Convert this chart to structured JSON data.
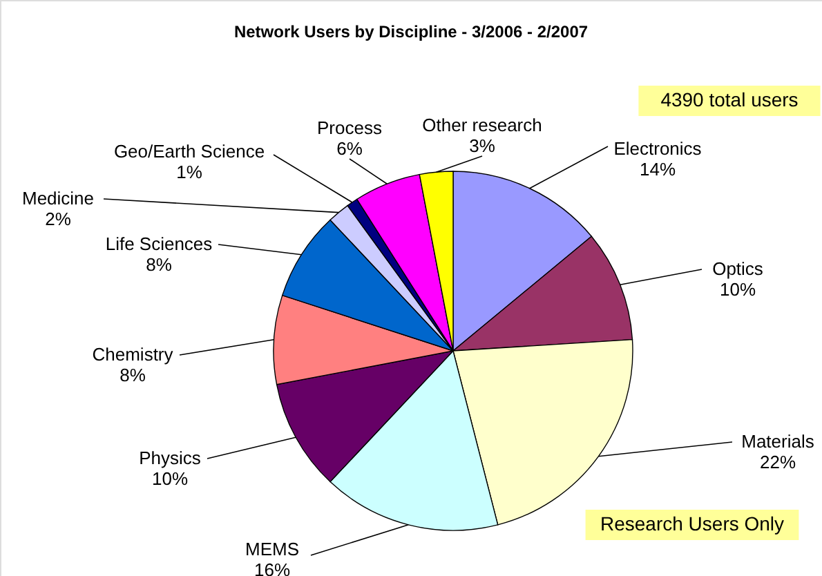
{
  "chart_data": {
    "type": "pie",
    "title": "Network Users by Discipline  - 3/2006 - 2/2007",
    "categories": [
      "Electronics",
      "Optics",
      "Materials",
      "MEMS",
      "Physics",
      "Chemistry",
      "Life Sciences",
      "Medicine",
      "Geo/Earth Science",
      "Process",
      "Other research"
    ],
    "values": [
      14,
      10,
      22,
      16,
      10,
      8,
      8,
      2,
      1,
      6,
      3
    ],
    "value_labels": [
      "14%",
      "10%",
      "22%",
      "16%",
      "10%",
      "8%",
      "8%",
      "2%",
      "1%",
      "6%",
      "3%"
    ],
    "colors": [
      "#9999ff",
      "#993366",
      "#ffffcc",
      "#ccffff",
      "#660066",
      "#ff8080",
      "#0066cc",
      "#ccccff",
      "#000080",
      "#ff00ff",
      "#ffff00"
    ],
    "legend": false,
    "annotations": [
      "4390 total users",
      "Research Users Only"
    ]
  }
}
